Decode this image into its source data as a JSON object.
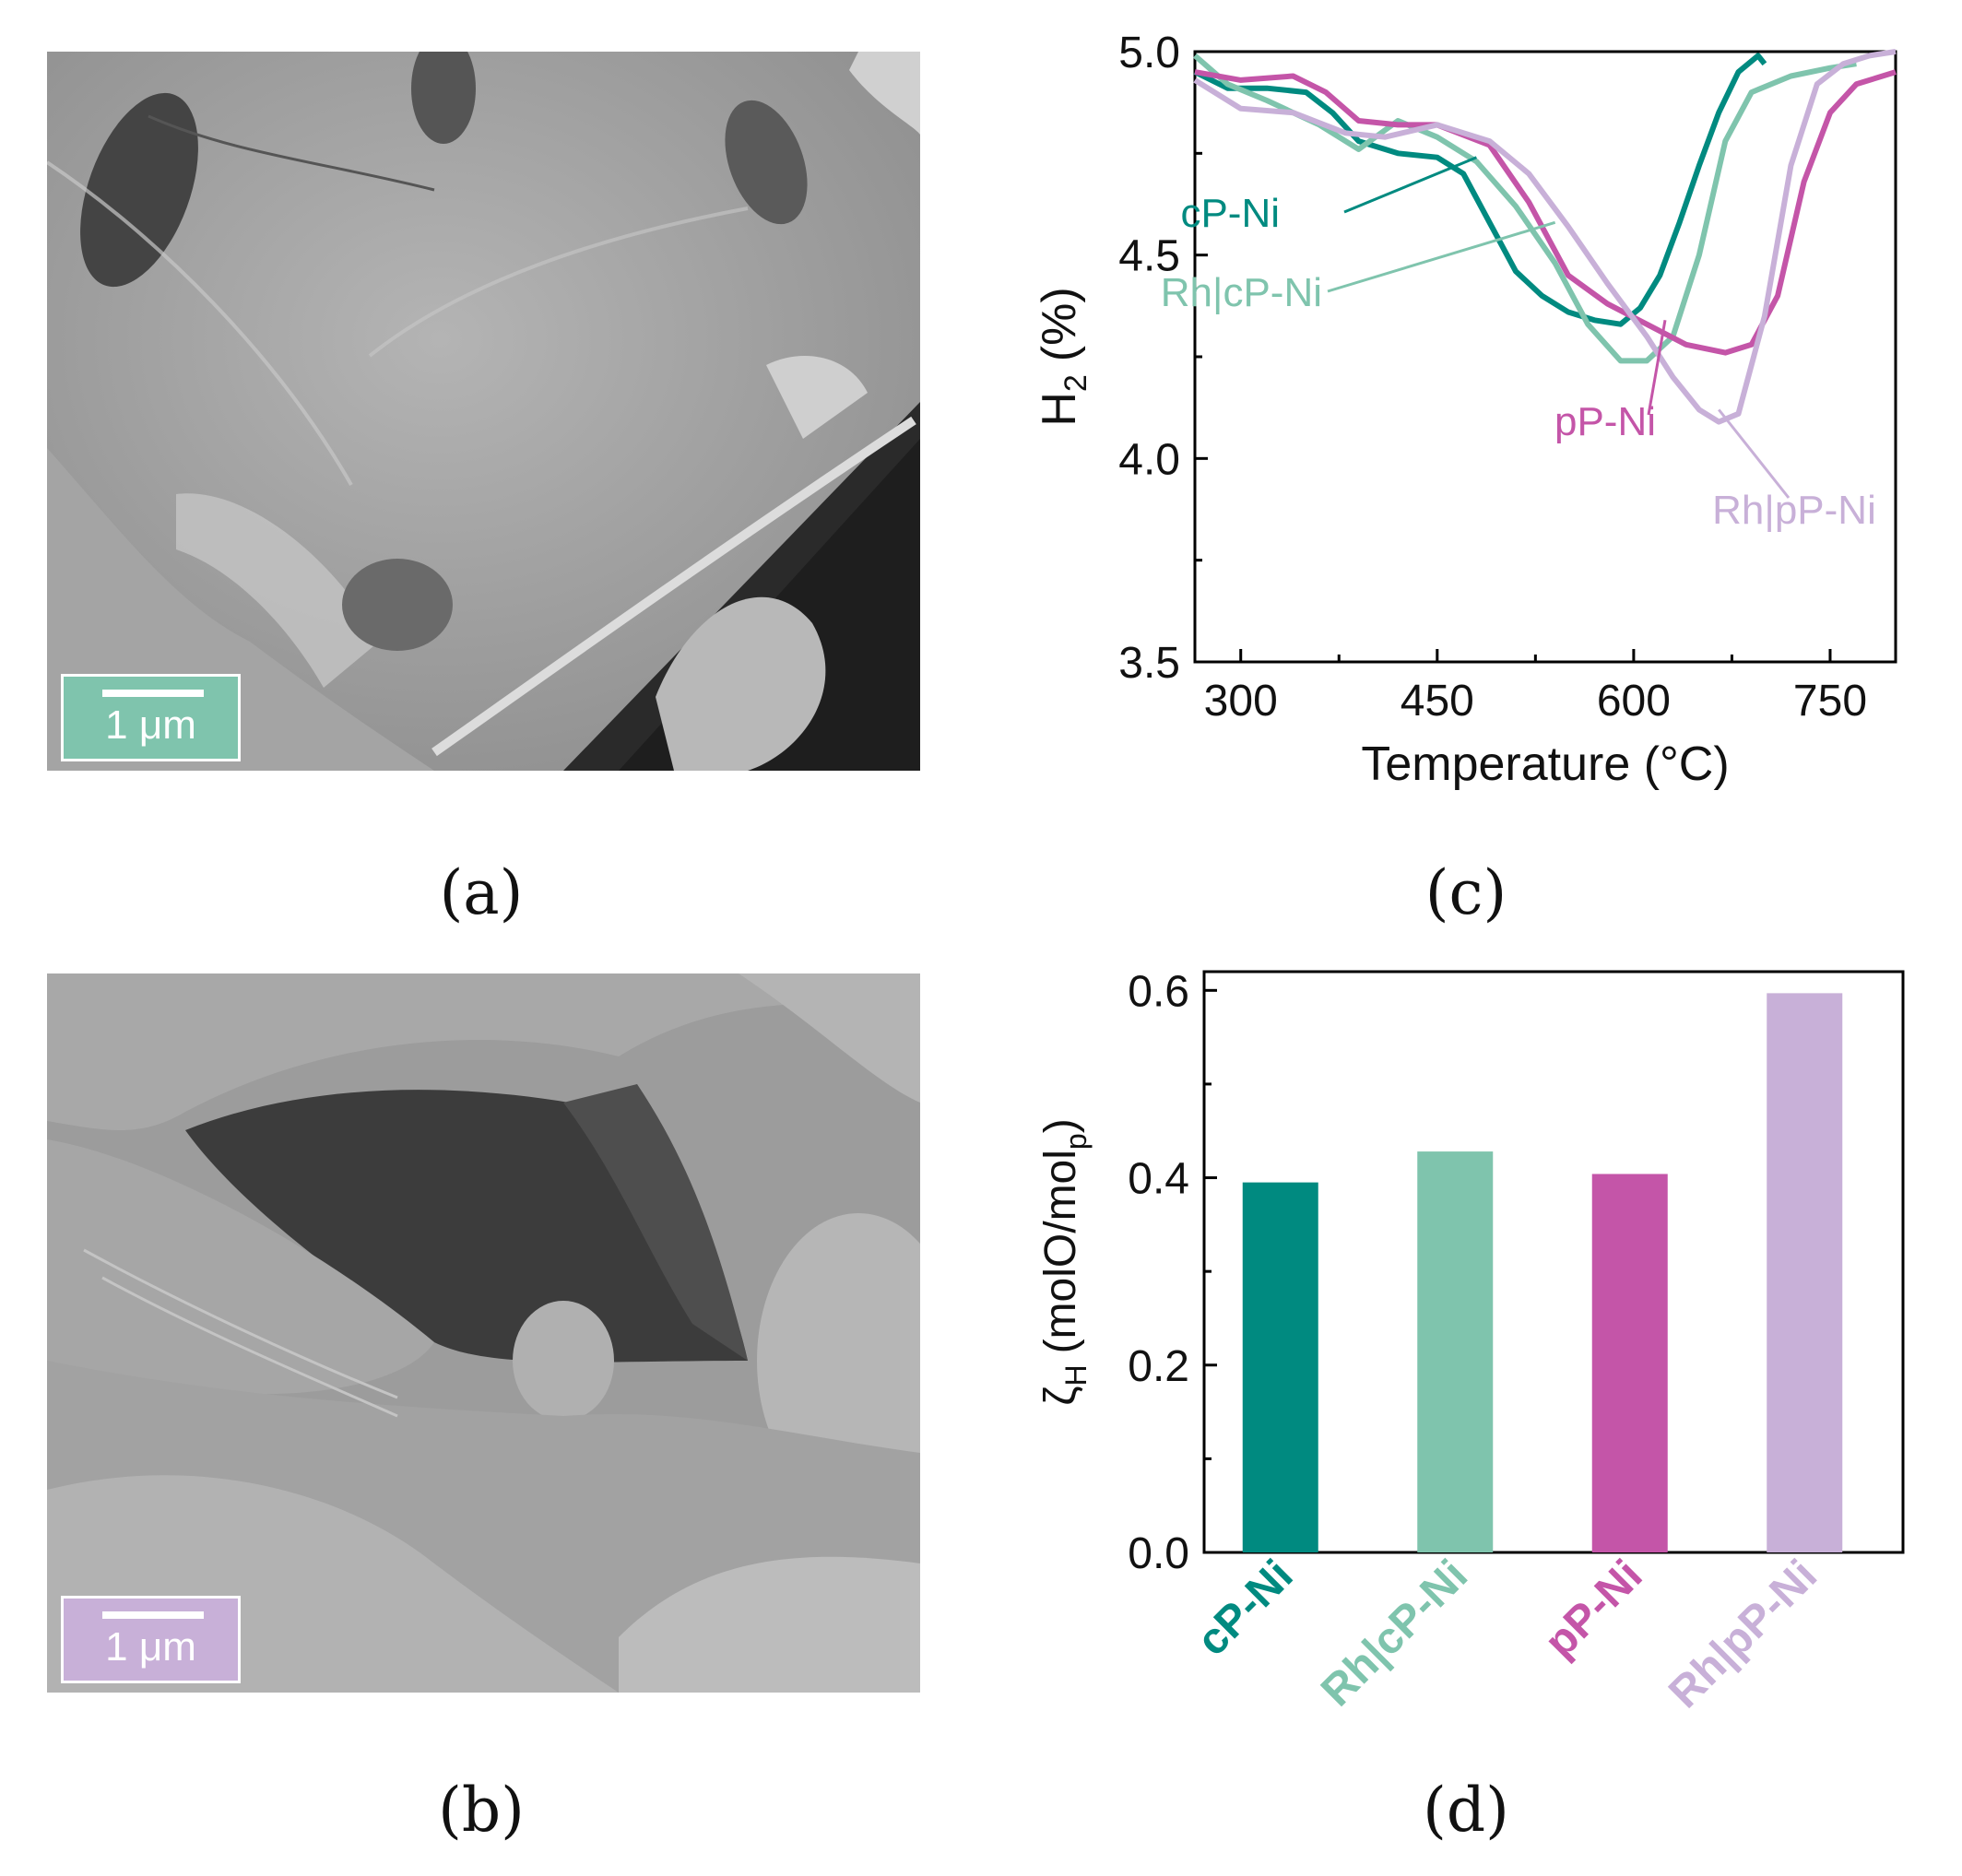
{
  "panels": {
    "a": {
      "caption": "(a)",
      "scalebar": "1 μm",
      "accent": "#7fc4ad"
    },
    "b": {
      "caption": "(b)",
      "scalebar": "1 μm",
      "accent": "#c8b0d8"
    },
    "c": {
      "caption": "(c)"
    },
    "d": {
      "caption": "(d)"
    }
  },
  "chart_data": [
    {
      "type": "line",
      "xlabel": "Temperature (°C)",
      "ylabel_main": "H",
      "ylabel_sub": "2",
      "ylabel_unit": "(%)",
      "xlim": [
        265,
        800
      ],
      "ylim": [
        3.5,
        5.0
      ],
      "xticks": [
        300,
        450,
        600,
        750
      ],
      "yticks": [
        3.5,
        4.0,
        4.5,
        5.0
      ],
      "ytick_labels": [
        "3.5",
        "4.0",
        "4.5",
        "5.0"
      ],
      "series": [
        {
          "name": "cP-Ni",
          "color": "#008a80",
          "x": [
            265,
            290,
            320,
            350,
            370,
            390,
            420,
            450,
            470,
            490,
            510,
            530,
            550,
            570,
            590,
            605,
            620,
            635,
            650,
            665,
            680,
            695,
            700
          ],
          "y": [
            4.95,
            4.91,
            4.91,
            4.9,
            4.85,
            4.78,
            4.75,
            4.74,
            4.7,
            4.58,
            4.46,
            4.4,
            4.36,
            4.34,
            4.33,
            4.37,
            4.45,
            4.58,
            4.72,
            4.85,
            4.95,
            4.99,
            4.97
          ]
        },
        {
          "name": "Rh|cP-Ni",
          "color": "#7fc4ad",
          "x": [
            265,
            290,
            320,
            360,
            390,
            420,
            450,
            480,
            510,
            540,
            565,
            590,
            610,
            630,
            650,
            670,
            690,
            720,
            750,
            770
          ],
          "y": [
            4.99,
            4.92,
            4.88,
            4.82,
            4.76,
            4.83,
            4.79,
            4.73,
            4.62,
            4.48,
            4.33,
            4.24,
            4.24,
            4.3,
            4.5,
            4.78,
            4.9,
            4.94,
            4.96,
            4.97
          ]
        },
        {
          "name": "pP-Ni",
          "color": "#c455a8",
          "x": [
            265,
            300,
            340,
            365,
            390,
            420,
            450,
            490,
            520,
            550,
            580,
            610,
            640,
            670,
            690,
            710,
            730,
            750,
            770,
            790,
            800
          ],
          "y": [
            4.95,
            4.93,
            4.94,
            4.9,
            4.83,
            4.82,
            4.82,
            4.77,
            4.63,
            4.45,
            4.38,
            4.33,
            4.28,
            4.26,
            4.28,
            4.4,
            4.68,
            4.85,
            4.92,
            4.94,
            4.95
          ]
        },
        {
          "name": "Rh|pP-Ni",
          "color": "#c8b0d8",
          "x": [
            265,
            300,
            340,
            380,
            410,
            450,
            490,
            520,
            550,
            580,
            610,
            630,
            650,
            665,
            680,
            700,
            720,
            740,
            760,
            780,
            800
          ],
          "y": [
            4.93,
            4.86,
            4.85,
            4.8,
            4.79,
            4.82,
            4.78,
            4.7,
            4.57,
            4.43,
            4.3,
            4.2,
            4.12,
            4.09,
            4.11,
            4.35,
            4.72,
            4.92,
            4.97,
            4.99,
            5.0
          ]
        }
      ],
      "annotations": [
        {
          "text": "cP-Ni",
          "color": "#008a80"
        },
        {
          "text": "Rh|cP-Ni",
          "color": "#7fc4ad"
        },
        {
          "text": "pP-Ni",
          "color": "#c455a8"
        },
        {
          "text": "Rh|pP-Ni",
          "color": "#c8b0d8"
        }
      ]
    },
    {
      "type": "bar",
      "categories": [
        "cP-Ni",
        "Rh|cP-Ni",
        "pP-Ni",
        "Rh|pP-Ni"
      ],
      "values": [
        0.395,
        0.428,
        0.404,
        0.597
      ],
      "colors": [
        "#008a80",
        "#7fc4ad",
        "#c455a8",
        "#c8b0d8"
      ],
      "ylabel_main": "ζ",
      "ylabel_sub": "H",
      "ylabel_unit": "(molO/mol",
      "ylabel_unit_sub": "p",
      "ylabel_unit_end": ")",
      "ylim": [
        0.0,
        0.62
      ],
      "yticks": [
        0.0,
        0.2,
        0.4,
        0.6
      ],
      "ytick_labels": [
        "0.0",
        "0.2",
        "0.4",
        "0.6"
      ]
    }
  ]
}
